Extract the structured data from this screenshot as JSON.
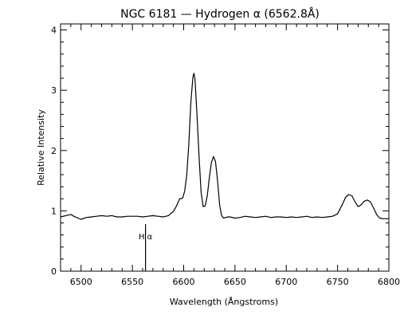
{
  "chart_data": {
    "type": "line",
    "title": "NGC 6181 — Hydrogen α (6562.8Å)",
    "xlabel": "Wavelength (Ångstroms)",
    "ylabel": "Relative Intensity",
    "xlim": [
      6480,
      6800
    ],
    "ylim": [
      0,
      4.1
    ],
    "x_ticks": [
      6500,
      6550,
      6600,
      6650,
      6700,
      6750,
      6800
    ],
    "y_ticks": [
      0,
      1,
      2,
      3,
      4
    ],
    "grid": false,
    "legend": "none",
    "line_color": "#000000",
    "series": [
      {
        "x": [
          6480,
          6485,
          6490,
          6493,
          6497,
          6500,
          6505,
          6510,
          6515,
          6520,
          6525,
          6530,
          6535,
          6540,
          6545,
          6550,
          6555,
          6560,
          6565,
          6570,
          6575,
          6580,
          6585,
          6590,
          6593,
          6596,
          6599,
          6601,
          6603,
          6605,
          6607,
          6609,
          6610,
          6611,
          6613,
          6615,
          6617,
          6619,
          6621,
          6623,
          6625,
          6627,
          6629,
          6631,
          6633,
          6635,
          6637,
          6639,
          6641,
          6643,
          6645,
          6650,
          6655,
          6660,
          6665,
          6670,
          6675,
          6680,
          6685,
          6690,
          6695,
          6700,
          6705,
          6710,
          6715,
          6720,
          6725,
          6730,
          6735,
          6740,
          6745,
          6750,
          6755,
          6758,
          6761,
          6764,
          6767,
          6770,
          6773,
          6776,
          6779,
          6782,
          6785,
          6788,
          6791,
          6794,
          6797,
          6800
        ],
        "y": [
          0.9,
          0.92,
          0.94,
          0.91,
          0.88,
          0.86,
          0.89,
          0.9,
          0.91,
          0.92,
          0.91,
          0.92,
          0.9,
          0.9,
          0.91,
          0.91,
          0.91,
          0.9,
          0.91,
          0.92,
          0.91,
          0.9,
          0.92,
          0.99,
          1.08,
          1.2,
          1.21,
          1.33,
          1.6,
          2.1,
          2.8,
          3.22,
          3.28,
          3.18,
          2.6,
          1.9,
          1.3,
          1.07,
          1.08,
          1.25,
          1.55,
          1.8,
          1.9,
          1.82,
          1.5,
          1.1,
          0.92,
          0.88,
          0.89,
          0.9,
          0.9,
          0.88,
          0.89,
          0.91,
          0.9,
          0.89,
          0.9,
          0.91,
          0.89,
          0.9,
          0.9,
          0.89,
          0.9,
          0.89,
          0.9,
          0.91,
          0.89,
          0.9,
          0.89,
          0.9,
          0.91,
          0.95,
          1.12,
          1.23,
          1.27,
          1.25,
          1.15,
          1.07,
          1.1,
          1.16,
          1.18,
          1.15,
          1.05,
          0.94,
          0.88,
          0.87,
          0.87,
          0.87
        ]
      }
    ],
    "annotations": [
      {
        "text": "H α",
        "x": 6562.8,
        "y_top": 0.78,
        "y_bottom": 0
      }
    ]
  }
}
